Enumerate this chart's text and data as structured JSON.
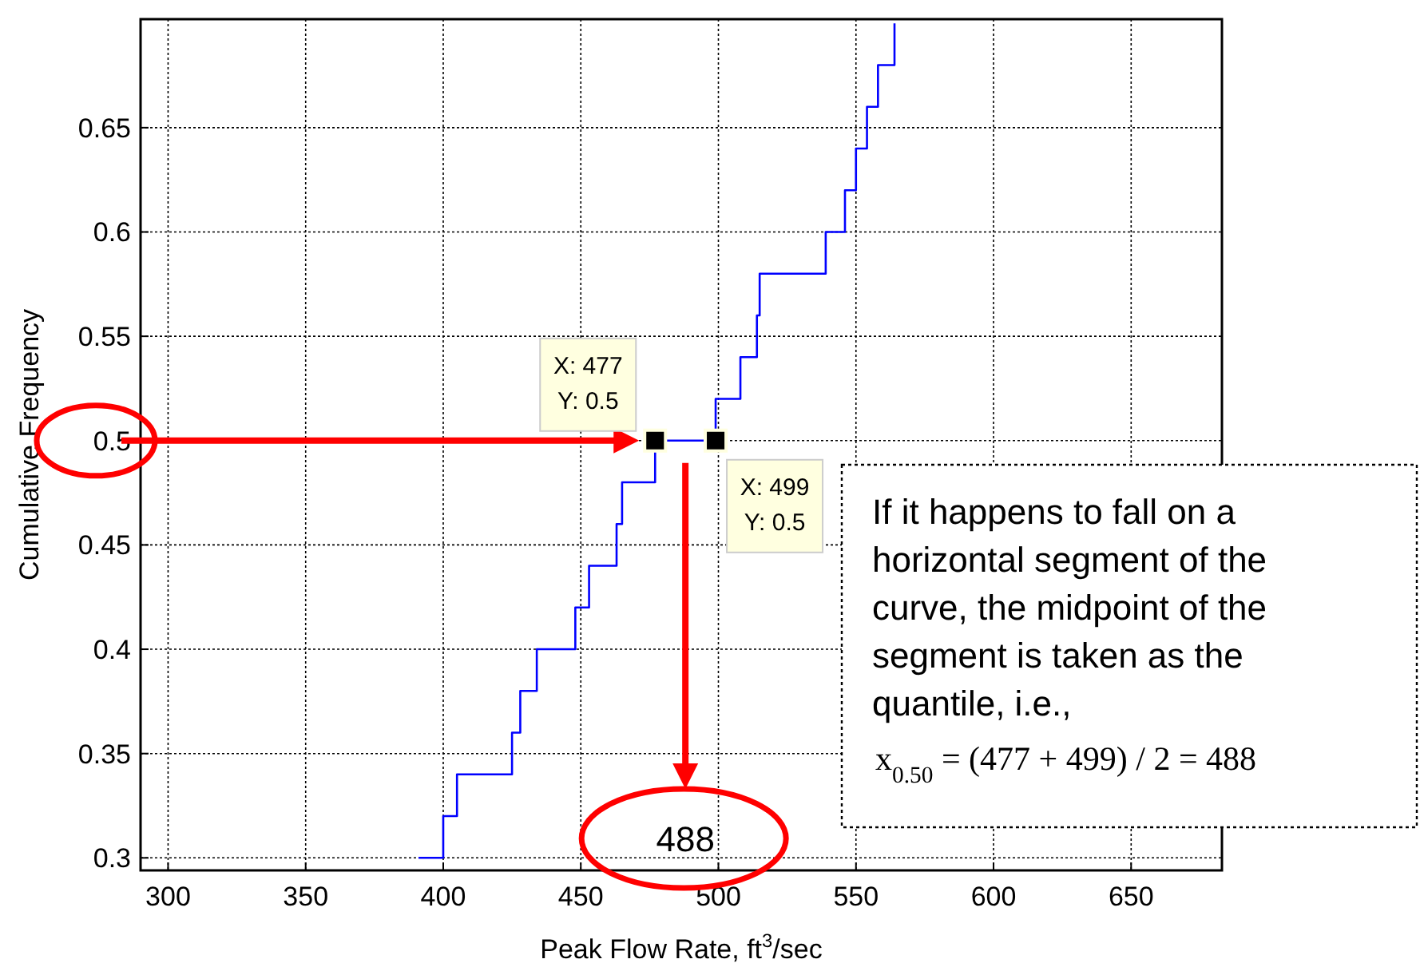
{
  "chart_data": {
    "type": "step",
    "xlabel": "Peak Flow Rate, ft$^{3}$/sec",
    "ylabel": "Cumulative Frequency",
    "xlim": [
      290,
      683
    ],
    "ylim": [
      0.294,
      0.702
    ],
    "xticks": [
      300,
      350,
      400,
      450,
      500,
      550,
      600,
      650
    ],
    "yticks": [
      0.3,
      0.35,
      0.4,
      0.45,
      0.5,
      0.55,
      0.6,
      0.65
    ],
    "grid": true,
    "series": [
      {
        "type": "step",
        "color": "#0000ff",
        "x": [
          391,
          400,
          405,
          425,
          428,
          434,
          448,
          453,
          463,
          465,
          477,
          499,
          508,
          514,
          515,
          539,
          546,
          550,
          554,
          558,
          564
        ],
        "values": [
          0.3,
          0.32,
          0.34,
          0.36,
          0.38,
          0.4,
          0.42,
          0.44,
          0.46,
          0.48,
          0.5,
          0.52,
          0.54,
          0.56,
          0.58,
          0.6,
          0.62,
          0.64,
          0.66,
          0.68,
          0.7
        ]
      },
      {
        "type": "scatter",
        "color": "#000000",
        "marker": "square",
        "x": [
          477,
          499
        ],
        "values": [
          0.5,
          0.5
        ]
      }
    ],
    "annotations": [
      {
        "text": "X: 477\nY: 0.5",
        "x": 477,
        "y": 0.5
      },
      {
        "text": "X: 499\nY: 0.5",
        "x": 499,
        "y": 0.5
      },
      "488",
      "If it happens to fall on a horizontal segment of the curve, the midpoint of the segment is taken as the quantile, i.e.,",
      "x$_{0.50}$ = (477 + 499) / 2 = 488"
    ]
  }
}
